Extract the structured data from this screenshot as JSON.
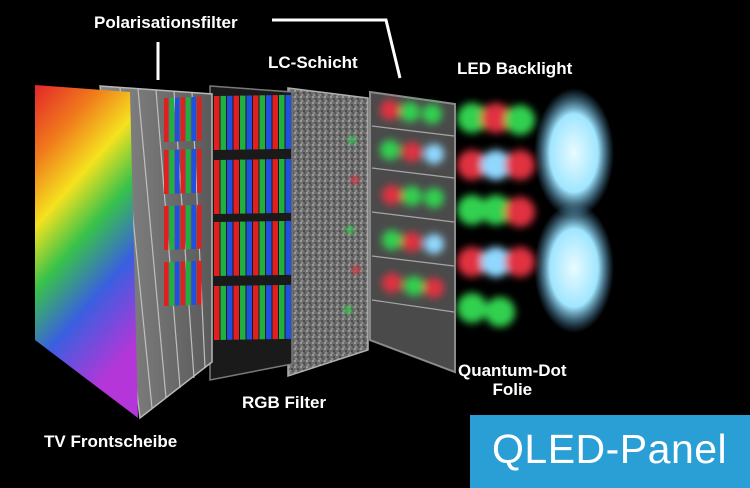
{
  "labels": {
    "polarisationsfilter": "Polarisationsfilter",
    "lc_schicht": "LC-Schicht",
    "led_backlight": "LED Backlight",
    "quantum_dot_line1": "Quantum-Dot",
    "quantum_dot_line2": "Folie",
    "rgb_filter": "RGB Filter",
    "tv_frontscheibe": "TV Frontscheibe"
  },
  "badge": {
    "text": "QLED-Panel",
    "color": "#2a9fd6"
  },
  "colors": {
    "background": "#000000",
    "subpixel_red": "#e02020",
    "subpixel_green": "#20b040",
    "subpixel_blue": "#2050e0",
    "backlight": "#a0e6ff"
  }
}
